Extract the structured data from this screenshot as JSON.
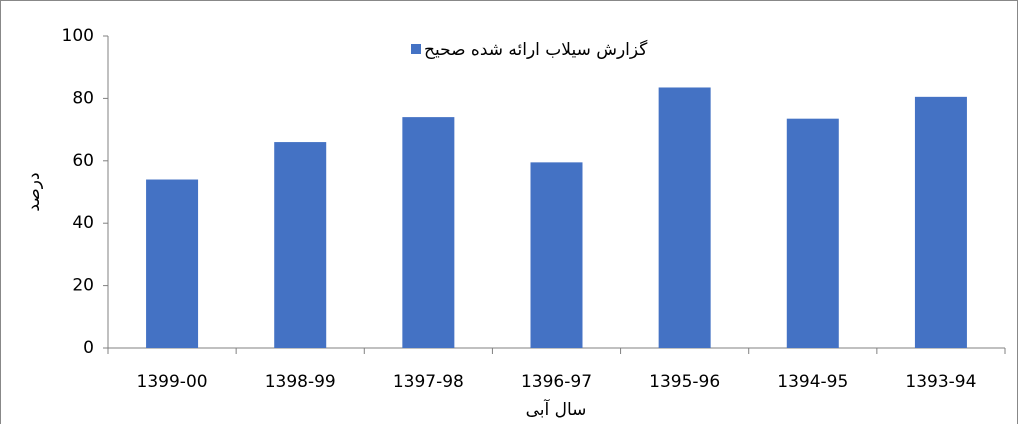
{
  "chart_data": {
    "type": "bar",
    "categories": [
      "1399-00",
      "1398-99",
      "1397-98",
      "1396-97",
      "1395-96",
      "1394-95",
      "1393-94"
    ],
    "series": [
      {
        "name": "گزارش سیلاب ارائه شده صحیح",
        "color": "#4472c4",
        "values": [
          54,
          66,
          74,
          59.5,
          83.5,
          73.5,
          80.5
        ]
      }
    ],
    "ylim": [
      0,
      100
    ],
    "yticks": [
      0,
      20,
      40,
      60,
      80,
      100
    ],
    "y_label": "درصد",
    "x_label": "سال آبی",
    "grid": false,
    "legend": "top"
  }
}
